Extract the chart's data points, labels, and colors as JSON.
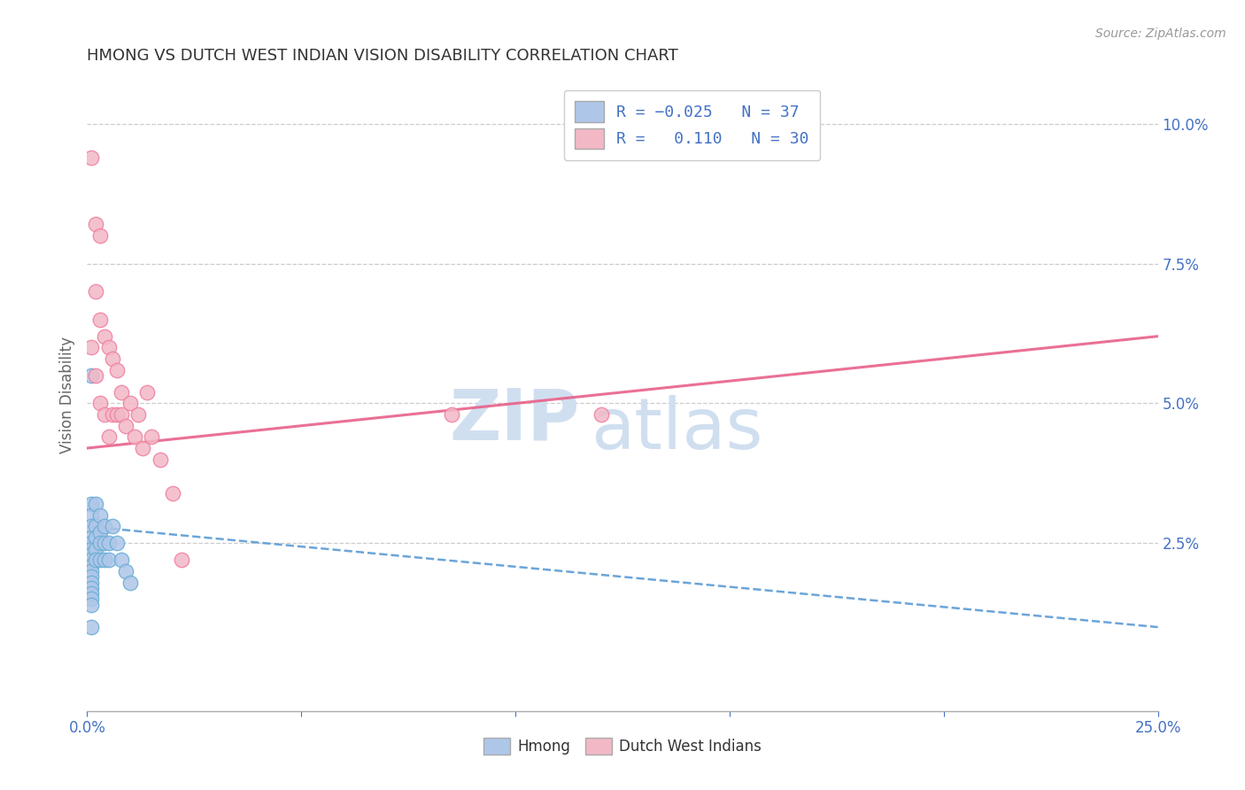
{
  "title": "HMONG VS DUTCH WEST INDIAN VISION DISABILITY CORRELATION CHART",
  "source": "Source: ZipAtlas.com",
  "xlabel_hmong": "Hmong",
  "xlabel_dwi": "Dutch West Indians",
  "ylabel": "Vision Disability",
  "xlim": [
    0.0,
    0.25
  ],
  "ylim": [
    -0.005,
    0.108
  ],
  "xticks": [
    0.0,
    0.05,
    0.1,
    0.15,
    0.2,
    0.25
  ],
  "xtick_labels": [
    "0.0%",
    "",
    "",
    "",
    "",
    "25.0%"
  ],
  "yticks_right": [
    0.025,
    0.05,
    0.075,
    0.1
  ],
  "ytick_labels_right": [
    "2.5%",
    "5.0%",
    "7.5%",
    "10.0%"
  ],
  "hmong_R": -0.025,
  "hmong_N": 37,
  "dwi_R": 0.11,
  "dwi_N": 30,
  "hmong_color": "#aec6e8",
  "dwi_color": "#f2b8c6",
  "hmong_edge_color": "#6aaed6",
  "dwi_edge_color": "#f080a0",
  "hmong_line_color": "#5b9bd5",
  "dwi_line_color": "#e8608a",
  "watermark_zip": "ZIP",
  "watermark_atlas": "atlas",
  "watermark_color": "#d0dff0",
  "background_color": "#ffffff",
  "hmong_x": [
    0.001,
    0.001,
    0.001,
    0.001,
    0.001,
    0.001,
    0.001,
    0.001,
    0.001,
    0.001,
    0.001,
    0.001,
    0.001,
    0.001,
    0.001,
    0.001,
    0.001,
    0.001,
    0.002,
    0.002,
    0.002,
    0.002,
    0.002,
    0.003,
    0.003,
    0.003,
    0.003,
    0.004,
    0.004,
    0.004,
    0.005,
    0.005,
    0.006,
    0.007,
    0.008,
    0.009,
    0.01
  ],
  "hmong_y": [
    0.055,
    0.032,
    0.03,
    0.028,
    0.026,
    0.025,
    0.024,
    0.023,
    0.022,
    0.021,
    0.02,
    0.019,
    0.018,
    0.017,
    0.016,
    0.015,
    0.014,
    0.01,
    0.032,
    0.028,
    0.026,
    0.024,
    0.022,
    0.03,
    0.027,
    0.025,
    0.022,
    0.028,
    0.025,
    0.022,
    0.025,
    0.022,
    0.028,
    0.025,
    0.022,
    0.02,
    0.018
  ],
  "dwi_x": [
    0.001,
    0.001,
    0.002,
    0.002,
    0.002,
    0.003,
    0.003,
    0.003,
    0.004,
    0.004,
    0.005,
    0.005,
    0.006,
    0.006,
    0.007,
    0.007,
    0.008,
    0.008,
    0.009,
    0.01,
    0.011,
    0.012,
    0.013,
    0.014,
    0.015,
    0.017,
    0.02,
    0.022,
    0.085,
    0.12
  ],
  "dwi_y": [
    0.094,
    0.06,
    0.082,
    0.07,
    0.055,
    0.08,
    0.065,
    0.05,
    0.062,
    0.048,
    0.06,
    0.044,
    0.058,
    0.048,
    0.056,
    0.048,
    0.052,
    0.048,
    0.046,
    0.05,
    0.044,
    0.048,
    0.042,
    0.052,
    0.044,
    0.04,
    0.034,
    0.022,
    0.048,
    0.048
  ],
  "hmong_trend_x": [
    0.0,
    0.25
  ],
  "hmong_trend_y": [
    0.028,
    0.01
  ],
  "dwi_trend_x": [
    0.0,
    0.25
  ],
  "dwi_trend_y": [
    0.042,
    0.062
  ]
}
